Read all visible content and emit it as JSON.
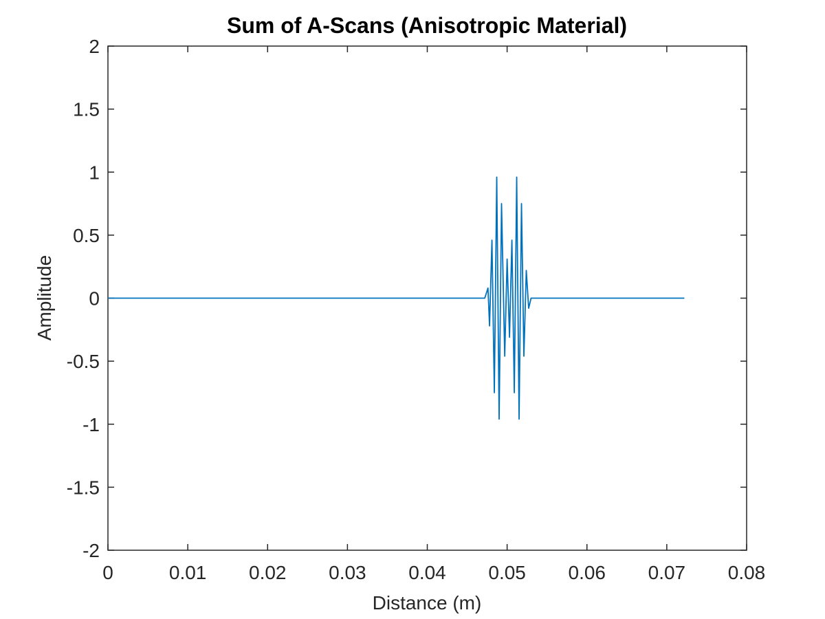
{
  "chart_data": {
    "type": "line",
    "title": "Sum of A-Scans (Anisotropic Material)",
    "xlabel": "Distance (m)",
    "ylabel": "Amplitude",
    "xlim": [
      0,
      0.08
    ],
    "ylim": [
      -2,
      2
    ],
    "xticks": [
      0,
      0.01,
      0.02,
      0.03,
      0.04,
      0.05,
      0.06,
      0.07,
      0.08
    ],
    "xtick_labels": [
      "0",
      "0.01",
      "0.02",
      "0.03",
      "0.04",
      "0.05",
      "0.06",
      "0.07",
      "0.08"
    ],
    "yticks": [
      -2,
      -1.5,
      -1,
      -0.5,
      0,
      0.5,
      1,
      1.5,
      2
    ],
    "ytick_labels": [
      "-2",
      "-1.5",
      "-1",
      "-0.5",
      "0",
      "0.5",
      "1",
      "1.5",
      "2"
    ],
    "grid": false,
    "series": [
      {
        "color": "#0072BD",
        "x": [
          0,
          0.0472,
          0.0476,
          0.0478,
          0.0481,
          0.0484,
          0.0487,
          0.049,
          0.0493,
          0.0497,
          0.05,
          0.0503,
          0.0506,
          0.0509,
          0.0512,
          0.0515,
          0.0518,
          0.0521,
          0.0524,
          0.0527,
          0.053,
          0.0533,
          0.0536,
          0.0539,
          0.0722
        ],
        "y": [
          0,
          0,
          0.08,
          -0.22,
          0.46,
          -0.75,
          0.96,
          -0.96,
          0.75,
          -0.46,
          0.31,
          -0.31,
          0.46,
          -0.75,
          0.96,
          -0.96,
          0.75,
          -0.46,
          0.22,
          -0.08,
          0,
          0,
          0,
          0,
          0
        ]
      }
    ]
  }
}
